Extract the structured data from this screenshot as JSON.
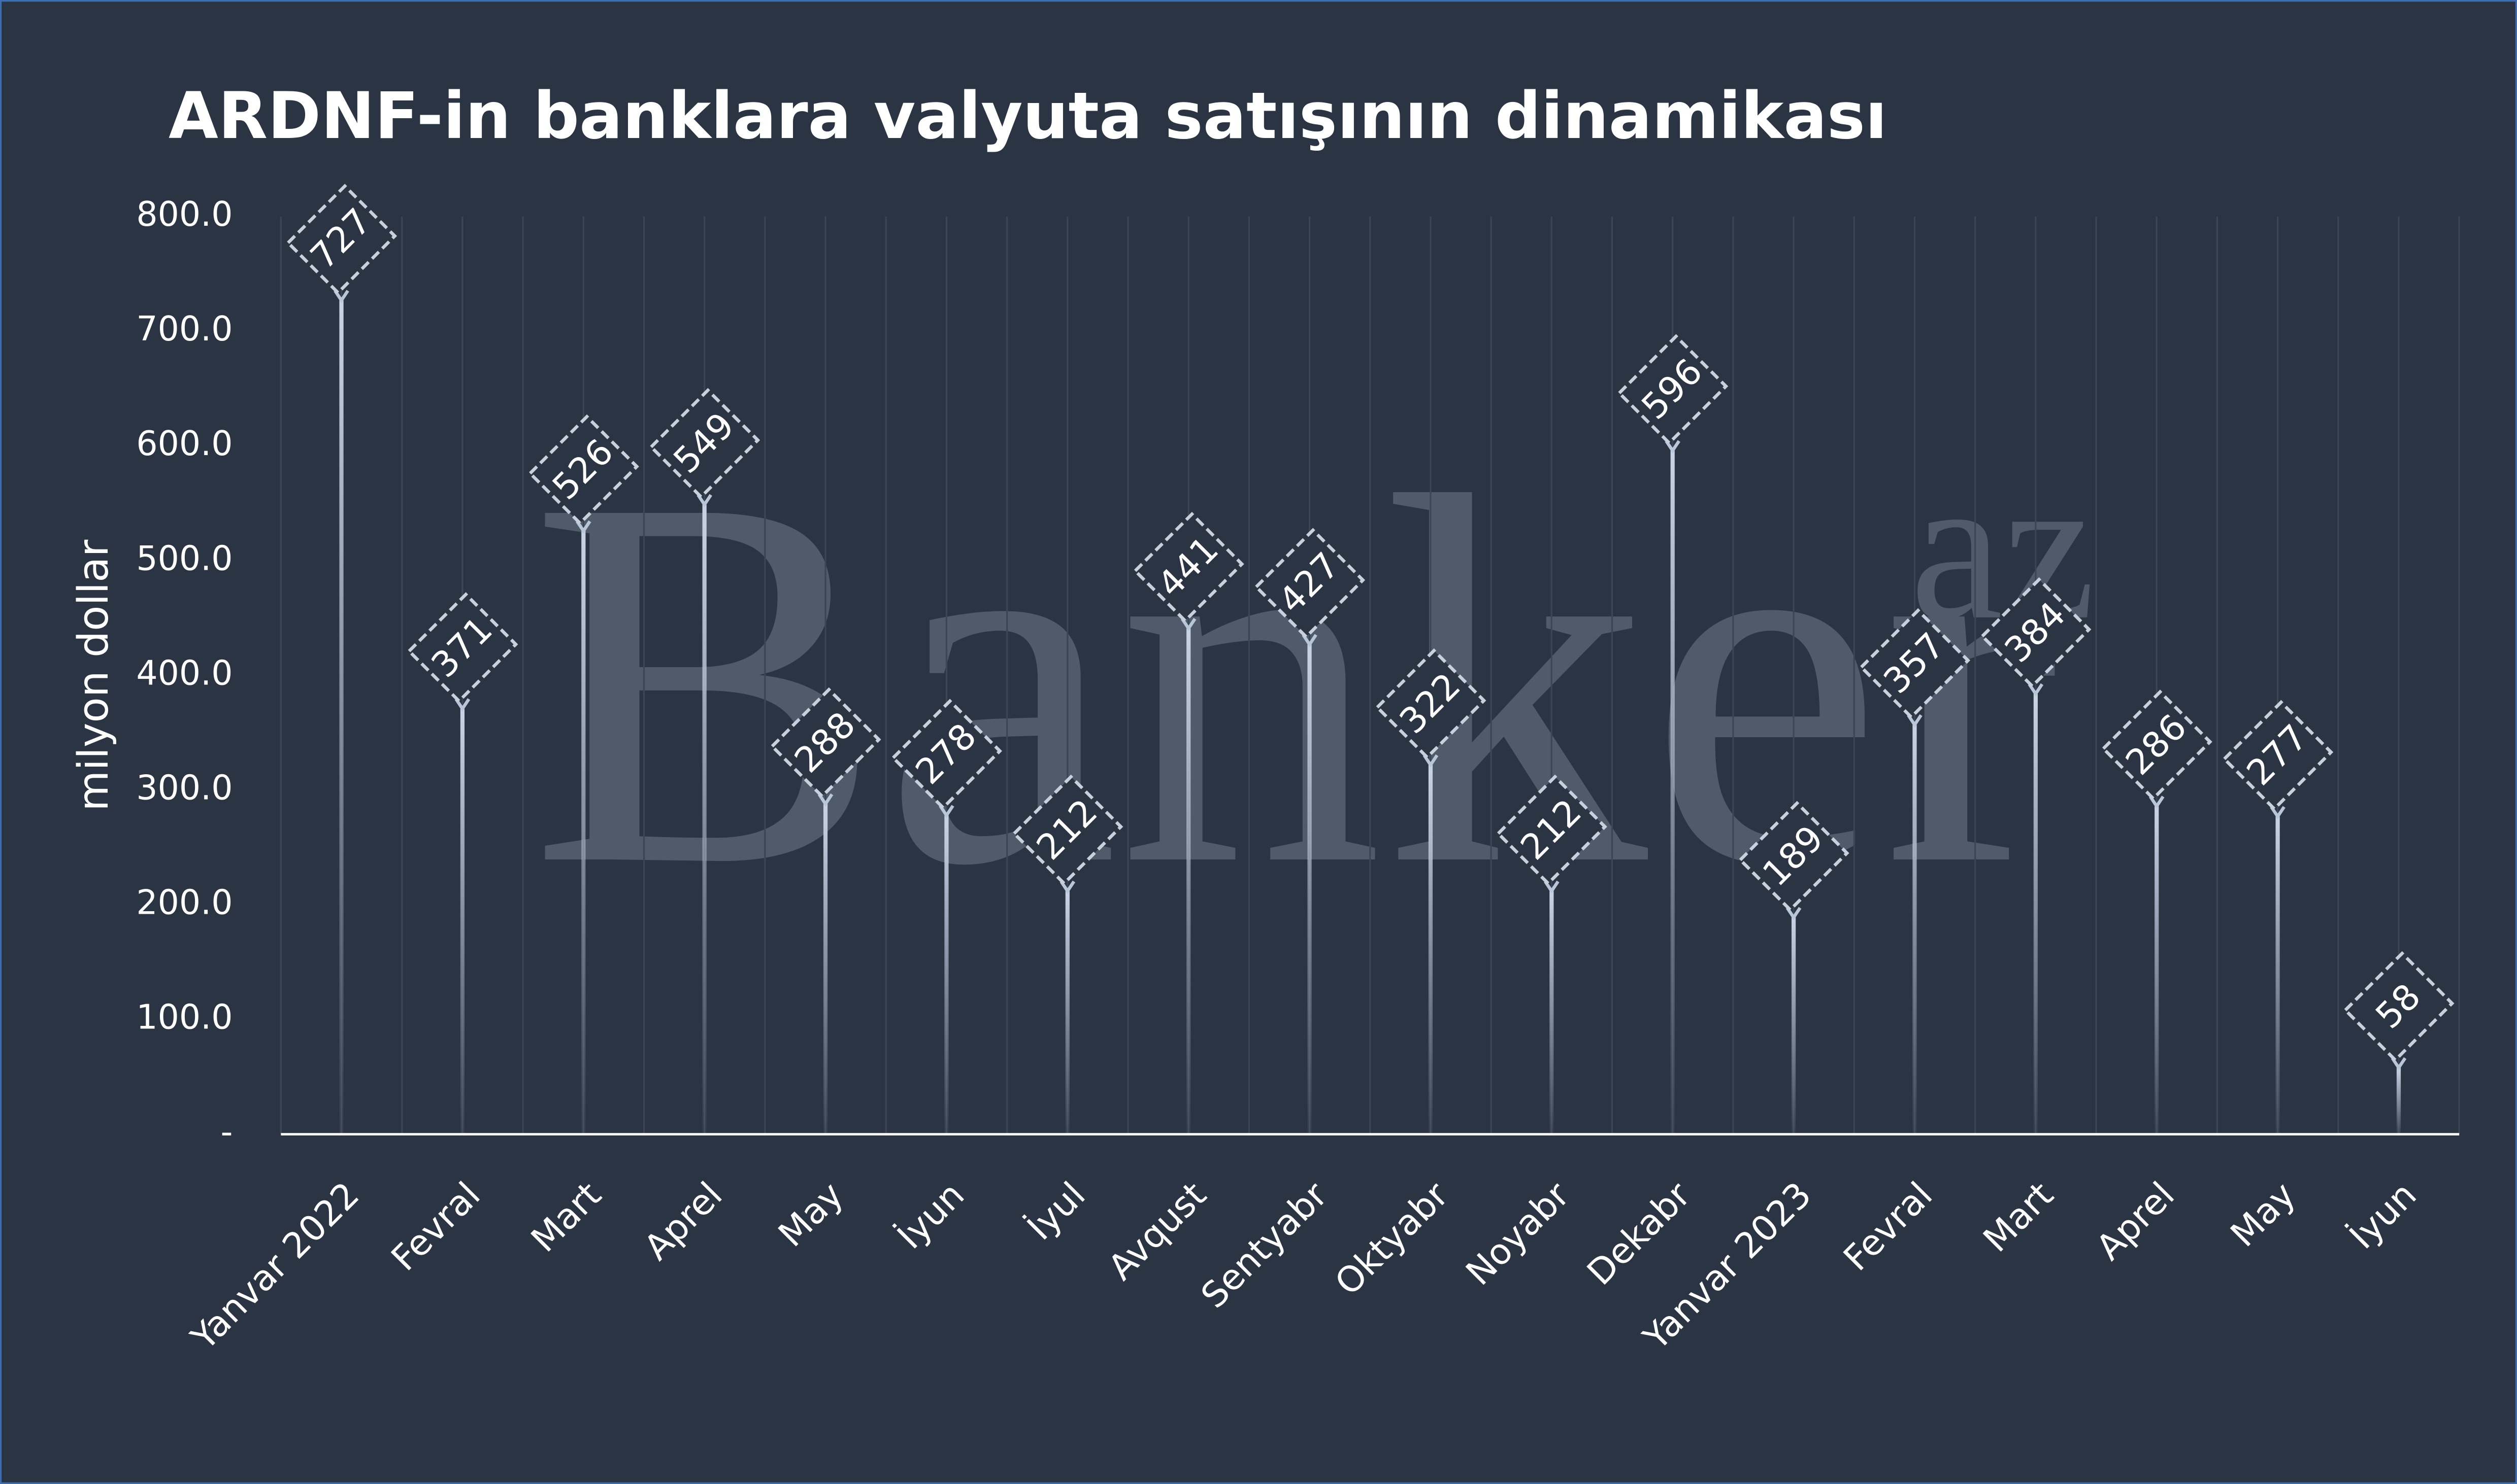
{
  "chart_data": {
    "type": "bar",
    "title": "ARDNF-in banklara valyuta satışının dinamikası",
    "y_label": "milyon dollar",
    "watermark": "Banker",
    "watermark_suffix": "az",
    "categories": [
      "Yanvar 2022",
      "Fevral",
      "Mart",
      "Aprel",
      "May",
      "İyun",
      "İyul",
      "Avqust",
      "Sentyabr",
      "Oktyabr",
      "Noyabr",
      "Dekabr",
      "Yanvar 2023",
      "Fevral",
      "Mart",
      "Aprel",
      "May",
      "İyun"
    ],
    "values": [
      727,
      371,
      526,
      549,
      288,
      278,
      212,
      441,
      427,
      322,
      212,
      596,
      189,
      357,
      384,
      286,
      277,
      58
    ],
    "color": "#b8c6da",
    "ylim": [
      0,
      800
    ],
    "yticks": [
      {
        "value": 0,
        "label": "-"
      },
      {
        "value": 100,
        "label": "100.0"
      },
      {
        "value": 200,
        "label": "200.0"
      },
      {
        "value": 300,
        "label": "300.0"
      },
      {
        "value": 400,
        "label": "400.0"
      },
      {
        "value": 500,
        "label": "500.0"
      },
      {
        "value": 600,
        "label": "600.0"
      },
      {
        "value": 700,
        "label": "700.0"
      },
      {
        "value": 800,
        "label": "800.0"
      }
    ],
    "grid": true
  }
}
